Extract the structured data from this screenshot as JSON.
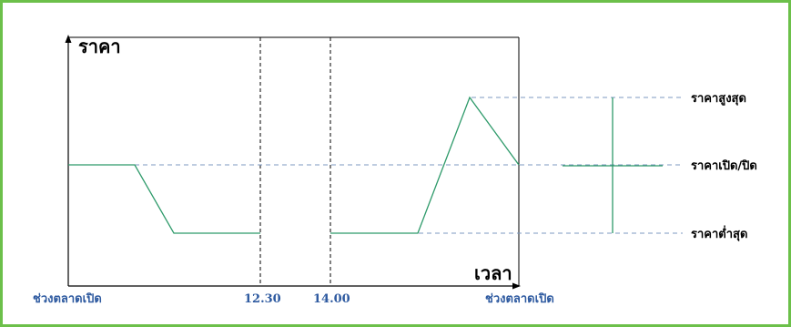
{
  "axes": {
    "ylabel": "ราคา",
    "xlabel": "เวลา"
  },
  "price_levels": {
    "high": "ราคาสูงสุด",
    "open_close": "ราคาเปิด/ปิด",
    "low": "ราคาต่ำสุด"
  },
  "time_markers": {
    "open_left": "ช่วงตลาดเปิด",
    "break_start": "12.30",
    "break_end": "14.00",
    "open_right": "ช่วงตลาดเปิด"
  },
  "colors": {
    "frame": "#6cc04a",
    "price_line": "#2e9a6a",
    "guide_line": "#7d9ac0",
    "marker_text": "#2e5aa0",
    "axis": "#000000"
  }
}
